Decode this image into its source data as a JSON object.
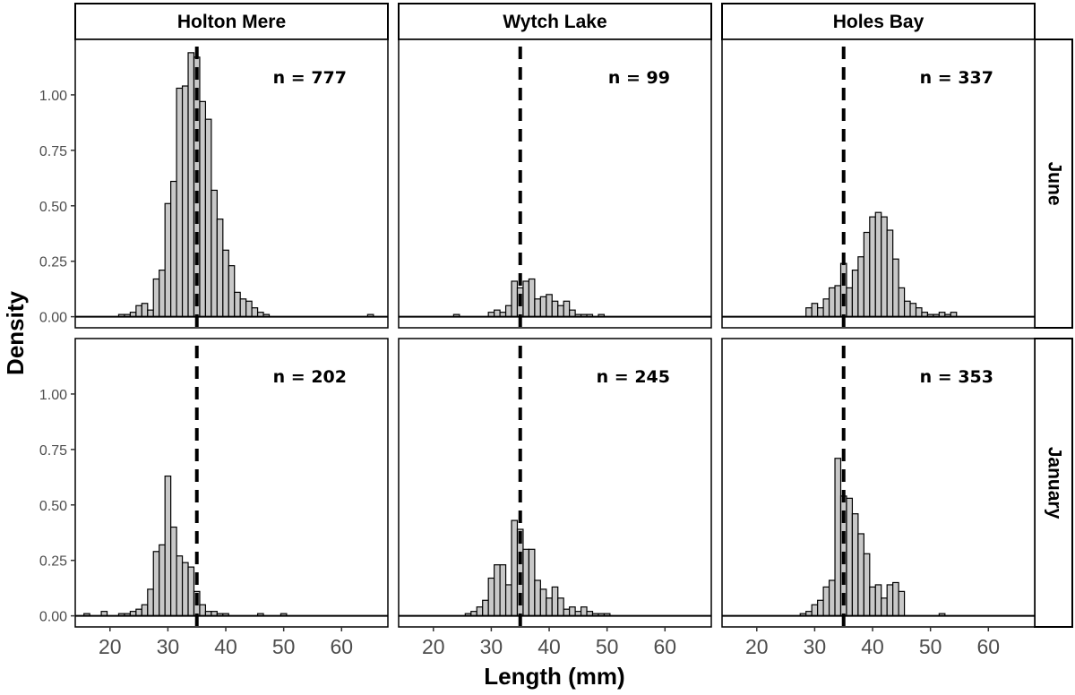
{
  "chart_data": {
    "type": "bar",
    "chart_kind": "faceted histogram",
    "xlabel": "Length (mm)",
    "ylabel": "Density",
    "xlim": [
      14,
      68
    ],
    "ylim": [
      -0.05,
      1.25
    ],
    "xticks": [
      20,
      30,
      40,
      50,
      60
    ],
    "yticks": [
      0.0,
      0.25,
      0.5,
      0.75,
      1.0
    ],
    "ytick_labels": [
      "0.00",
      "0.25",
      "0.50",
      "0.75",
      "1.00"
    ],
    "bin_width_mm": 1,
    "reference_line_x": 35,
    "reference_line_style": "dashed",
    "bar_fill": "#c8c8c8",
    "bar_stroke": "#000000",
    "grid": false,
    "columns": [
      "Holton Mere",
      "Wytch Lake",
      "Holes Bay"
    ],
    "rows": [
      "June",
      "January"
    ],
    "panels": [
      {
        "column": "Holton Mere",
        "row": "June",
        "n_label": "n = 777",
        "x": [
          22,
          23,
          24,
          25,
          26,
          27,
          28,
          29,
          30,
          31,
          32,
          33,
          34,
          35,
          36,
          37,
          38,
          39,
          40,
          41,
          42,
          43,
          44,
          45,
          46,
          47,
          65
        ],
        "values": [
          0.01,
          0.01,
          0.02,
          0.05,
          0.06,
          0.03,
          0.17,
          0.21,
          0.51,
          0.61,
          1.03,
          1.04,
          1.19,
          1.17,
          0.97,
          0.89,
          0.57,
          0.44,
          0.3,
          0.23,
          0.11,
          0.08,
          0.07,
          0.04,
          0.02,
          0.01,
          0.01
        ]
      },
      {
        "column": "Wytch Lake",
        "row": "June",
        "n_label": "n = 99",
        "x": [
          24,
          30,
          31,
          32,
          33,
          34,
          35,
          36,
          37,
          38,
          39,
          40,
          41,
          42,
          43,
          44,
          45,
          46,
          47,
          49
        ],
        "values": [
          0.01,
          0.02,
          0.03,
          0.02,
          0.05,
          0.16,
          0.13,
          0.16,
          0.17,
          0.08,
          0.09,
          0.1,
          0.07,
          0.05,
          0.07,
          0.03,
          0.01,
          0.01,
          0.01,
          0.01
        ]
      },
      {
        "column": "Holes Bay",
        "row": "June",
        "n_label": "n = 337",
        "x": [
          29,
          30,
          31,
          32,
          33,
          34,
          35,
          36,
          37,
          38,
          39,
          40,
          41,
          42,
          43,
          44,
          45,
          46,
          47,
          48,
          49,
          50,
          51,
          52,
          53,
          54
        ],
        "values": [
          0.04,
          0.06,
          0.04,
          0.08,
          0.13,
          0.14,
          0.24,
          0.13,
          0.21,
          0.27,
          0.38,
          0.45,
          0.47,
          0.45,
          0.39,
          0.26,
          0.13,
          0.07,
          0.06,
          0.04,
          0.02,
          0.01,
          0.01,
          0.02,
          0.01,
          0.02
        ]
      },
      {
        "column": "Holton Mere",
        "row": "January",
        "n_label": "n = 202",
        "x": [
          16,
          19,
          22,
          23,
          24,
          25,
          26,
          27,
          28,
          29,
          30,
          31,
          32,
          33,
          34,
          35,
          36,
          37,
          38,
          39,
          40,
          46,
          50
        ],
        "values": [
          0.01,
          0.02,
          0.01,
          0.01,
          0.02,
          0.03,
          0.05,
          0.12,
          0.29,
          0.32,
          0.63,
          0.4,
          0.27,
          0.24,
          0.22,
          0.11,
          0.05,
          0.02,
          0.02,
          0.01,
          0.01,
          0.01,
          0.01
        ]
      },
      {
        "column": "Wytch Lake",
        "row": "January",
        "n_label": "n = 245",
        "x": [
          26,
          27,
          28,
          29,
          30,
          31,
          32,
          33,
          34,
          35,
          36,
          37,
          38,
          39,
          40,
          41,
          42,
          43,
          44,
          45,
          46,
          47,
          48,
          49,
          50
        ],
        "values": [
          0.01,
          0.02,
          0.04,
          0.07,
          0.17,
          0.23,
          0.23,
          0.14,
          0.43,
          0.39,
          0.3,
          0.3,
          0.16,
          0.12,
          0.08,
          0.13,
          0.08,
          0.03,
          0.04,
          0.02,
          0.04,
          0.02,
          0.01,
          0.01,
          0.01
        ]
      },
      {
        "column": "Holes Bay",
        "row": "January",
        "n_label": "n = 353",
        "x": [
          28,
          29,
          30,
          31,
          32,
          33,
          34,
          35,
          36,
          37,
          38,
          39,
          40,
          41,
          42,
          43,
          44,
          45,
          52
        ],
        "values": [
          0.01,
          0.02,
          0.05,
          0.07,
          0.13,
          0.16,
          0.71,
          0.54,
          0.53,
          0.46,
          0.37,
          0.28,
          0.13,
          0.14,
          0.08,
          0.14,
          0.15,
          0.11,
          0.01
        ]
      }
    ]
  }
}
